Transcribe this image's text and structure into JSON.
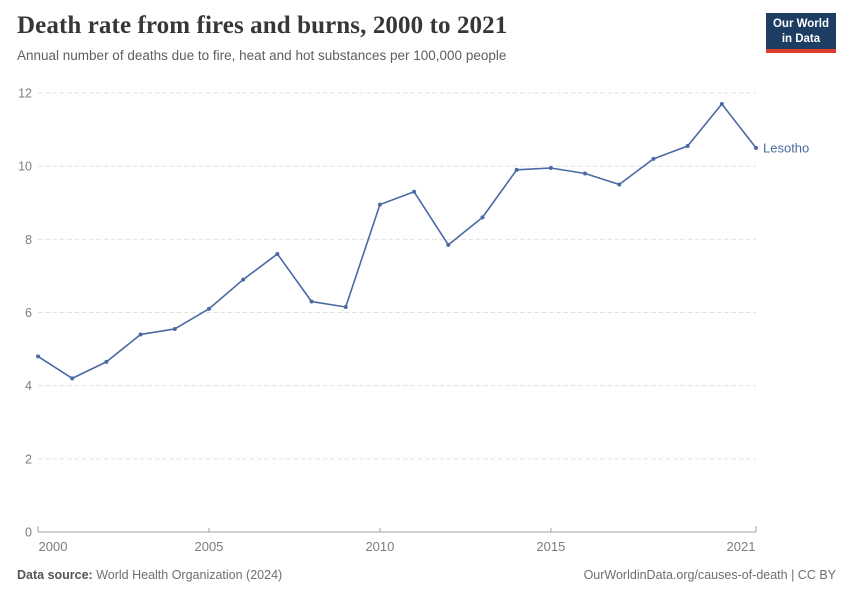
{
  "header": {
    "title": "Death rate from fires and burns, 2000 to 2021",
    "subtitle": "Annual number of deaths due to fire, heat and hot substances per 100,000 people",
    "logo": {
      "line1": "Our World",
      "line2": "in Data",
      "bg_color": "#1d3d63",
      "accent_color": "#dc3b2e"
    }
  },
  "footer": {
    "source_label": "Data source:",
    "source_value": " World Health Organization (2024)",
    "credit": "OurWorldinData.org/causes-of-death | CC BY"
  },
  "chart_data": {
    "type": "line",
    "title": "Death rate from fires and burns, 2000 to 2021",
    "subtitle": "Annual number of deaths due to fire, heat and hot substances per 100,000 people",
    "xlabel": "",
    "ylabel": "",
    "xlim": [
      2000,
      2021
    ],
    "ylim": [
      0,
      12
    ],
    "xticks": [
      2000,
      2005,
      2010,
      2015,
      2021
    ],
    "yticks": [
      0,
      2,
      4,
      6,
      8,
      10,
      12
    ],
    "grid": "horizontal-dashed",
    "legend": "end-of-line-label",
    "series": [
      {
        "name": "Lesotho",
        "color": "#4a6aa3",
        "x": [
          2000,
          2001,
          2002,
          2003,
          2004,
          2005,
          2006,
          2007,
          2008,
          2009,
          2010,
          2011,
          2012,
          2013,
          2014,
          2015,
          2016,
          2017,
          2018,
          2019,
          2020,
          2021
        ],
        "values": [
          4.8,
          4.2,
          4.65,
          5.4,
          5.55,
          6.1,
          6.9,
          7.6,
          6.3,
          6.15,
          8.95,
          9.3,
          7.85,
          8.6,
          9.9,
          9.95,
          9.8,
          9.5,
          10.2,
          10.55,
          11.7,
          10.5
        ]
      }
    ]
  }
}
